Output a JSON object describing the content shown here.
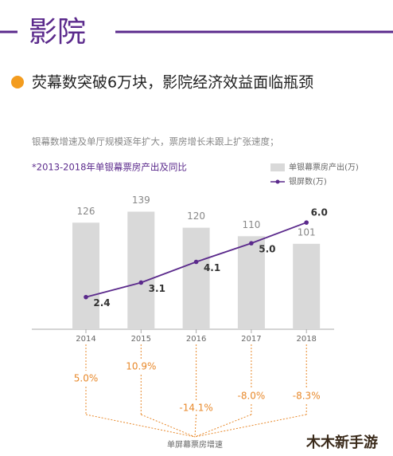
{
  "header": {
    "title": "影院"
  },
  "headline": "荧幕数突破6万块，影院经济效益面临瓶颈",
  "note": "银幕数增速及单厅规模逐年扩大，票房增长未跟上扩张速度；",
  "watermark": "木木新手游",
  "chart_data": {
    "type": "bar",
    "title": "*2013-2018年单银幕票房产出及同比",
    "categories": [
      "2014",
      "2015",
      "2016",
      "2017",
      "2018"
    ],
    "series": [
      {
        "name": "单银幕票房产出(万)",
        "color": "#d9d9d9",
        "values": [
          126,
          139,
          120,
          110,
          101
        ]
      },
      {
        "name": "银屏数(万)",
        "color": "#5b2a8c",
        "type": "line",
        "axis": "y2",
        "values": [
          2.4,
          3.1,
          4.1,
          5.0,
          6.0
        ],
        "value_labels": [
          "2.4",
          "3.1",
          "4.1",
          "5.0",
          "6.0"
        ]
      }
    ],
    "ylim": [
      0,
      180
    ],
    "y2lim": [
      0,
      8.2
    ],
    "growth": {
      "title": "单屏幕票房增速",
      "color": "#e8892b",
      "values": [
        5.0,
        10.9,
        -14.1,
        -8.0,
        -8.3
      ],
      "value_labels": [
        "5.0%",
        "10.9%",
        "-14.1%",
        "-8.0%",
        "-8.3%"
      ]
    }
  }
}
